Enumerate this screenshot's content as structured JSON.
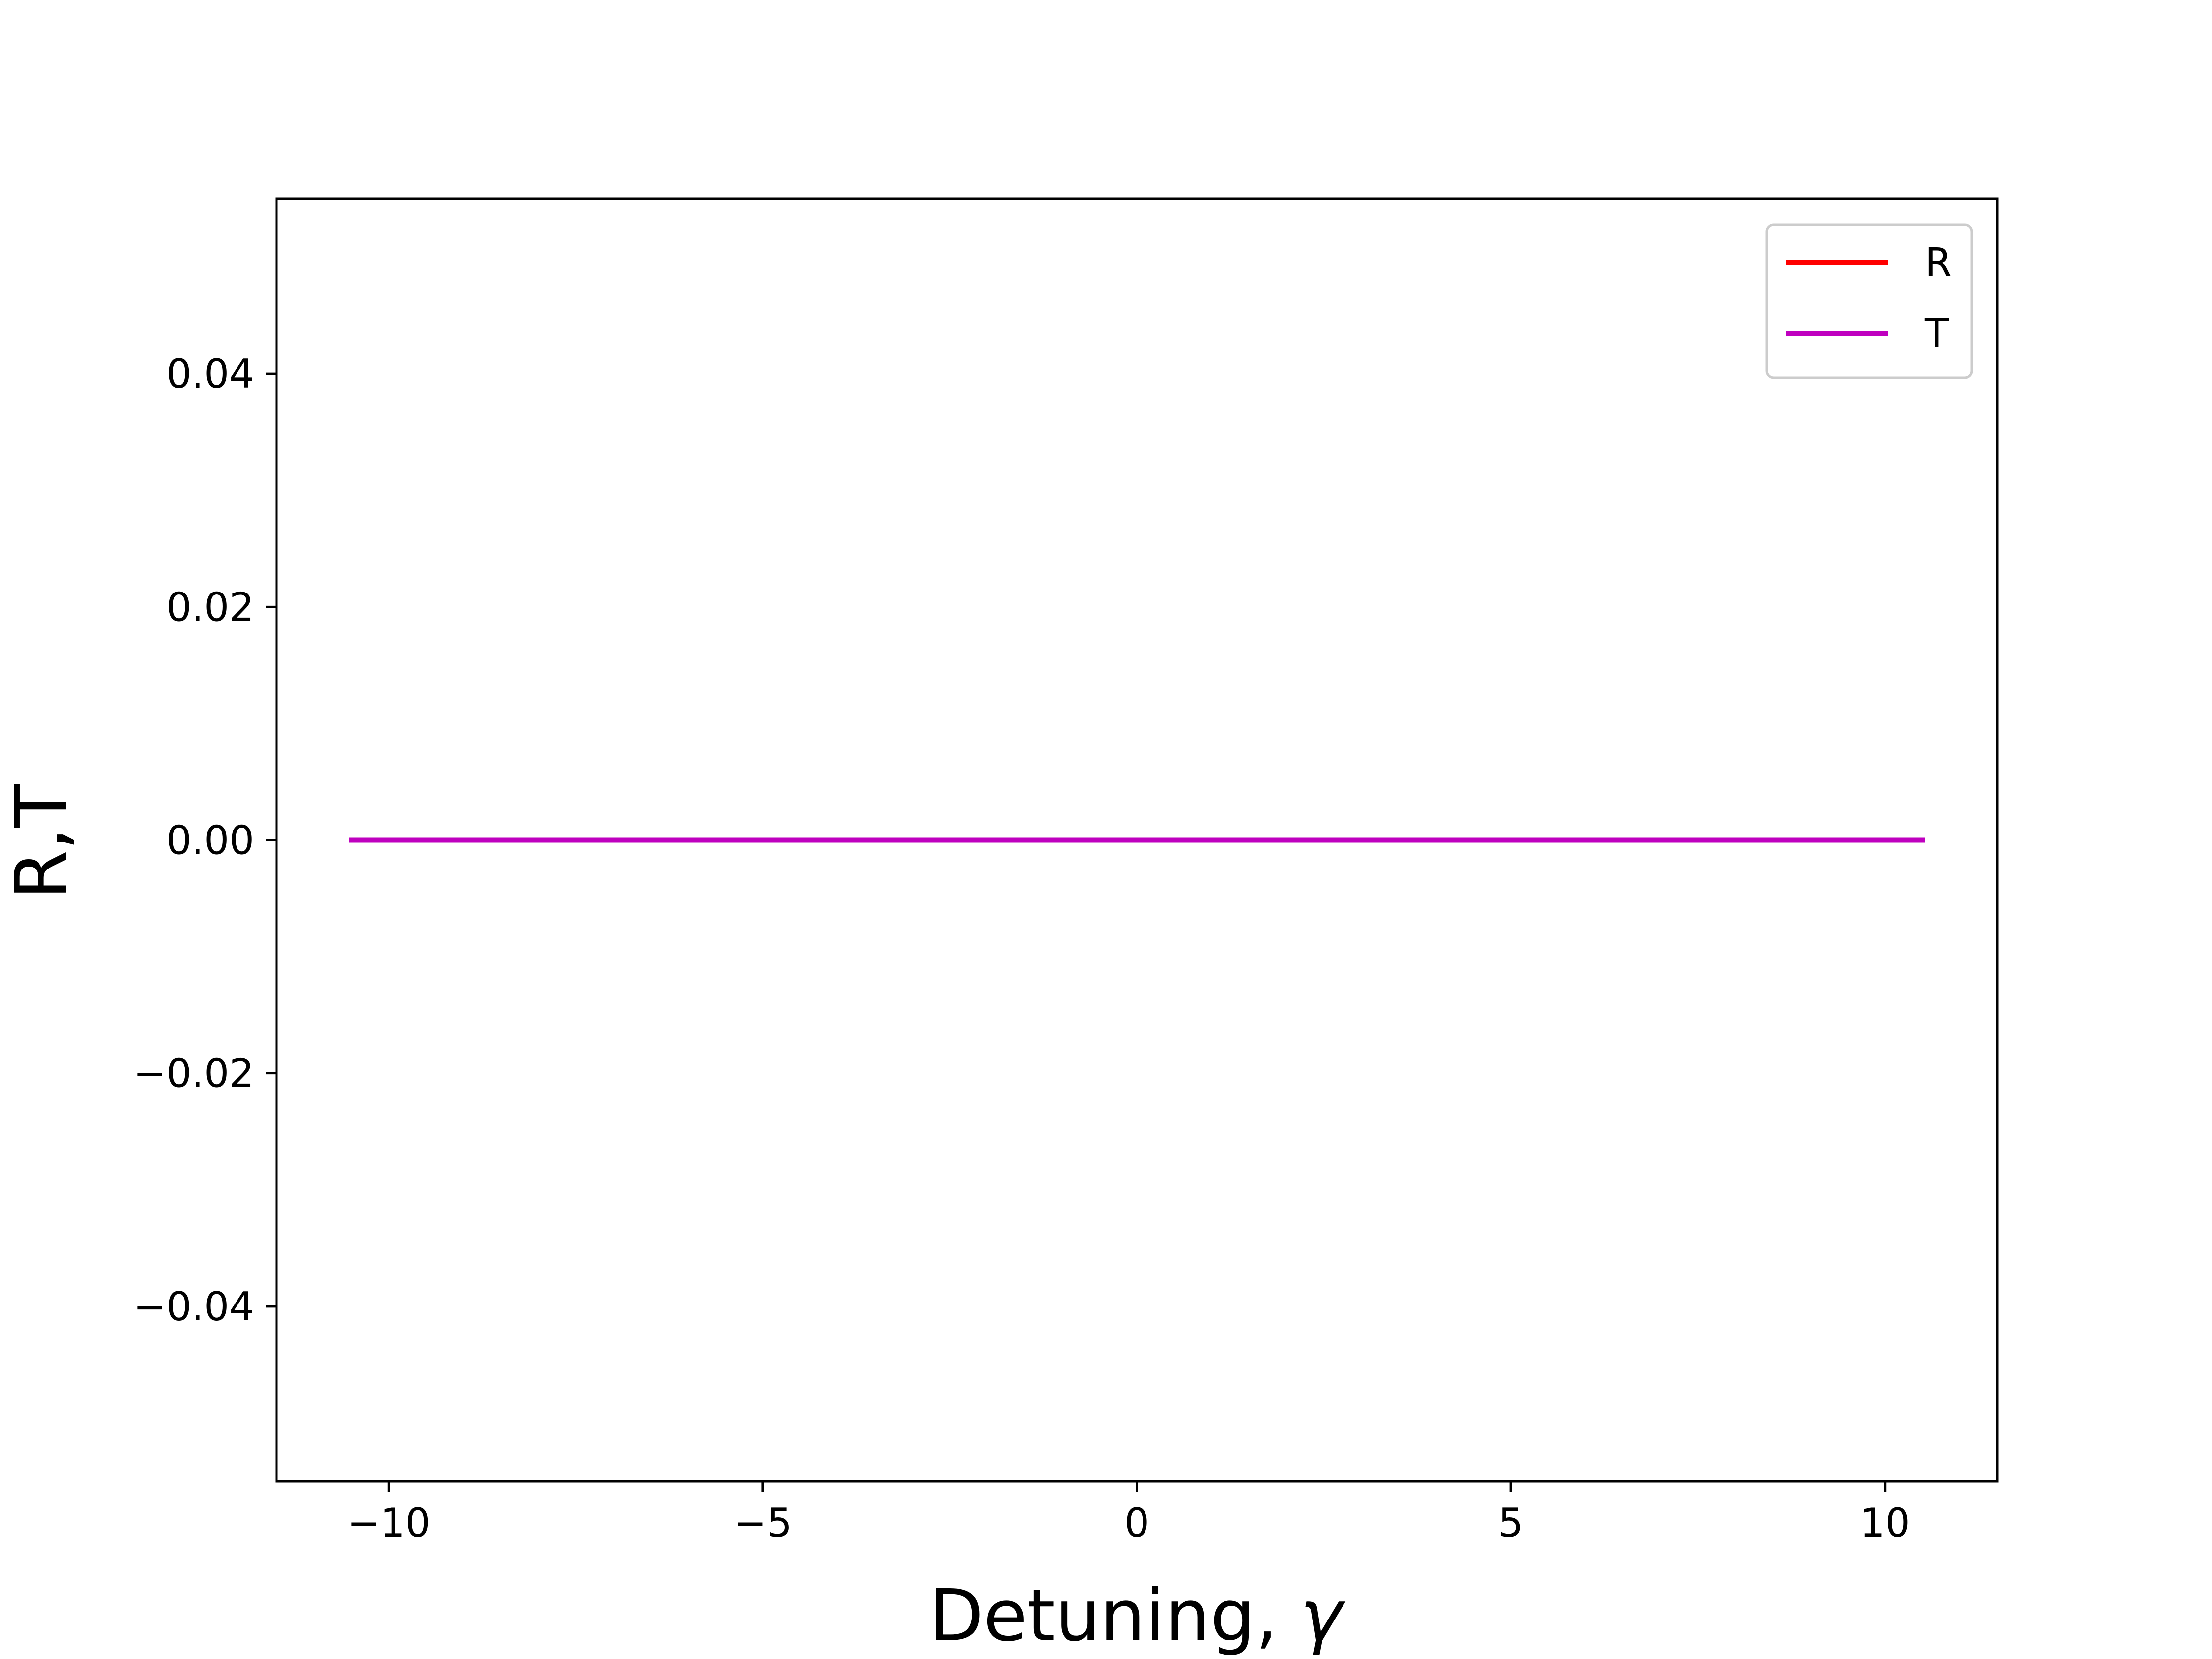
{
  "chart_data": {
    "type": "line",
    "title": "",
    "xlabel": "Detuning, ",
    "xlabel_symbol": "γ",
    "ylabel": "R,T",
    "xlim": [
      -11.5,
      11.5
    ],
    "ylim": [
      -0.055,
      0.055
    ],
    "xticks": [
      -10,
      -5,
      0,
      5,
      10
    ],
    "xtick_labels": [
      "−10",
      "−5",
      "0",
      "5",
      "10"
    ],
    "yticks": [
      -0.04,
      -0.02,
      0.0,
      0.02,
      0.04
    ],
    "ytick_labels": [
      "−0.04",
      "−0.02",
      "0.00",
      "0.02",
      "0.04"
    ],
    "grid": false,
    "legend_position": "top-right",
    "series": [
      {
        "name": "R",
        "color": "#ff0000",
        "x": [
          -10.5,
          -5,
          0,
          5,
          10.5
        ],
        "y": [
          0,
          0,
          0,
          0,
          0
        ]
      },
      {
        "name": "T",
        "color": "#bf00bf",
        "x": [
          -10.5,
          -5,
          0,
          5,
          10.5
        ],
        "y": [
          0,
          0,
          0,
          0,
          0
        ]
      }
    ]
  }
}
